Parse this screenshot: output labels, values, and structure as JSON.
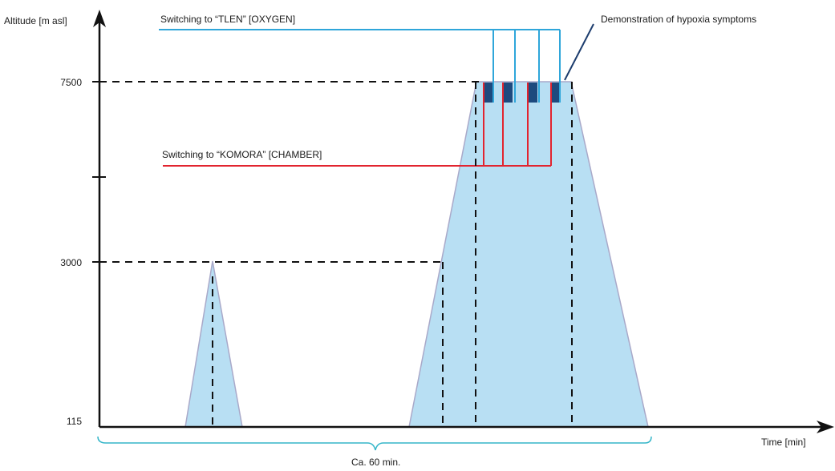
{
  "y_axis": {
    "label": "Altitude [m asl]",
    "ticks": [
      "7500",
      "3000",
      "115"
    ]
  },
  "x_axis": {
    "label": "Time [min]"
  },
  "duration_label": "Ca. 60 min.",
  "labels": {
    "oxygen_line": "Switching to “TLEN” [OXYGEN]",
    "chamber_line": "Switching to “KOMORA” [CHAMBER]",
    "hypoxia_demo": "Demonstration of hypoxia symptoms"
  },
  "colors": {
    "fill": "#b8dff3",
    "outline": "#a9a9c9",
    "oxygen": "#2fa6da",
    "chamber": "#e2242f",
    "blocks": "#1d4a7e",
    "axis": "#111111"
  }
}
